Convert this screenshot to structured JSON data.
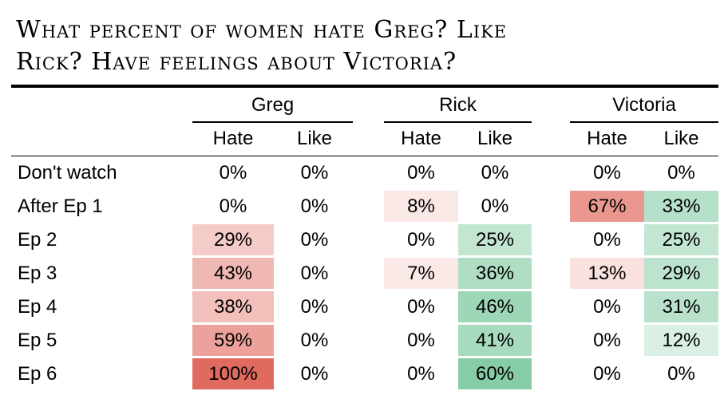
{
  "title": {
    "line1": "What percent of women hate Greg? Like",
    "line2": "Rick? Have feelings about Victoria?"
  },
  "colors": {
    "hate": "#e06a5e",
    "like": "#3fae72",
    "rule": "#000000"
  },
  "chart_data": {
    "type": "table",
    "title": "What percent of women hate Greg? Like Rick? Have feelings about Victoria?",
    "groups": [
      "Greg",
      "Rick",
      "Victoria"
    ],
    "subcolumns": [
      "Hate",
      "Like"
    ],
    "rows": [
      "Don't watch",
      "After Ep 1",
      "Ep 2",
      "Ep 3",
      "Ep 4",
      "Ep 5",
      "Ep 6"
    ],
    "series": [
      {
        "group": "Greg",
        "metric": "Hate",
        "values": [
          0,
          0,
          29,
          43,
          38,
          59,
          100
        ]
      },
      {
        "group": "Greg",
        "metric": "Like",
        "values": [
          0,
          0,
          0,
          0,
          0,
          0,
          0
        ]
      },
      {
        "group": "Rick",
        "metric": "Hate",
        "values": [
          0,
          8,
          0,
          7,
          0,
          0,
          0
        ]
      },
      {
        "group": "Rick",
        "metric": "Like",
        "values": [
          0,
          0,
          25,
          36,
          46,
          41,
          60
        ]
      },
      {
        "group": "Victoria",
        "metric": "Hate",
        "values": [
          0,
          67,
          0,
          13,
          0,
          0,
          0
        ]
      },
      {
        "group": "Victoria",
        "metric": "Like",
        "values": [
          0,
          33,
          25,
          29,
          31,
          12,
          0
        ]
      }
    ],
    "unit": "%"
  }
}
